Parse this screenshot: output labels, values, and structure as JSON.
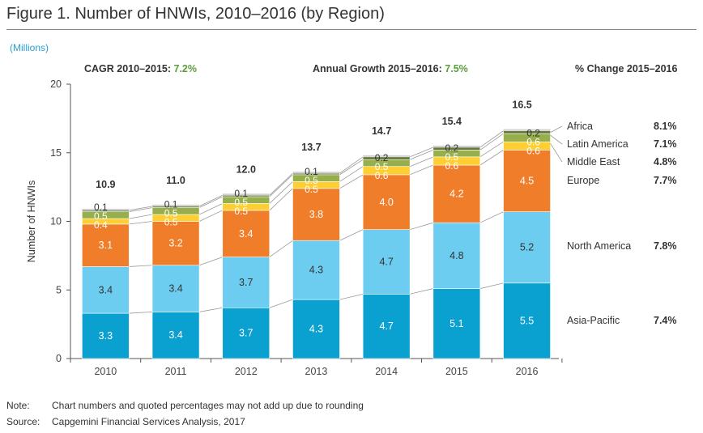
{
  "title": "Figure 1. Number of HNWIs, 2010–2016 (by Region)",
  "units_label": "(Millions)",
  "headers": {
    "cagr_label": "CAGR 2010–2015:",
    "cagr_value": "7.2%",
    "growth_label": "Annual Growth 2015–2016:",
    "growth_value": "7.5%",
    "change_label": "% Change 2015–2016"
  },
  "chart_data": {
    "type": "bar",
    "stacked": true,
    "categories": [
      "2010",
      "2011",
      "2012",
      "2013",
      "2014",
      "2015",
      "2016"
    ],
    "ylabel": "Number of HNWIs",
    "xlabel": "",
    "ylim": [
      0,
      20
    ],
    "yticks": [
      0,
      5,
      10,
      15,
      20
    ],
    "grid": false,
    "legend_position": "right",
    "totals": [
      "10.9",
      "11.0",
      "12.0",
      "13.7",
      "14.7",
      "15.4",
      "16.5"
    ],
    "series": [
      {
        "name": "Asia-Pacific",
        "color": "#0aa0cf",
        "label_color": "#ffffff",
        "change": "7.4%",
        "values": [
          3.3,
          3.4,
          3.7,
          4.3,
          4.7,
          5.1,
          5.5
        ],
        "labels": [
          "3.3",
          "3.4",
          "3.7",
          "4.3",
          "4.7",
          "5.1",
          "5.5"
        ]
      },
      {
        "name": "North America",
        "color": "#6ccdf0",
        "label_color": "#333333",
        "change": "7.8%",
        "values": [
          3.4,
          3.4,
          3.7,
          4.3,
          4.7,
          4.8,
          5.2
        ],
        "labels": [
          "3.4",
          "3.4",
          "3.7",
          "4.3",
          "4.7",
          "4.8",
          "5.2"
        ]
      },
      {
        "name": "Europe",
        "color": "#f07d29",
        "label_color": "#ffffff",
        "change": "7.7%",
        "values": [
          3.1,
          3.2,
          3.4,
          3.8,
          4.0,
          4.2,
          4.5
        ],
        "labels": [
          "3.1",
          "3.2",
          "3.4",
          "3.8",
          "4.0",
          "4.2",
          "4.5"
        ]
      },
      {
        "name": "Middle East",
        "color": "#fdcf33",
        "label_color": "#ffffff",
        "change": "4.8%",
        "values": [
          0.4,
          0.5,
          0.5,
          0.5,
          0.6,
          0.6,
          0.6
        ],
        "labels": [
          "0.4",
          "0.5",
          "0.5",
          "0.5",
          "0.6",
          "0.6",
          "0.6"
        ]
      },
      {
        "name": "Latin America",
        "color": "#96ae4b",
        "label_color": "#ffffff",
        "change": "7.1%",
        "values": [
          0.5,
          0.5,
          0.5,
          0.5,
          0.5,
          0.5,
          0.6
        ],
        "labels": [
          "0.5",
          "0.5",
          "0.5",
          "0.5",
          "0.5",
          "0.5",
          "0.6"
        ]
      },
      {
        "name": "Africa",
        "color": "#66793a",
        "label_color": "#333333",
        "change": "8.1%",
        "values": [
          0.1,
          0.1,
          0.1,
          0.1,
          0.2,
          0.2,
          0.2
        ],
        "labels": [
          "0.1",
          "0.1",
          "0.1",
          "0.1",
          "0.2",
          "0.2",
          "0.2"
        ]
      }
    ]
  },
  "notes": {
    "note_label": "Note:",
    "note_text": "Chart numbers and quoted percentages may not add up due to rounding",
    "source_label": "Source:",
    "source_text": "Capgemini Financial Services Analysis, 2017"
  }
}
